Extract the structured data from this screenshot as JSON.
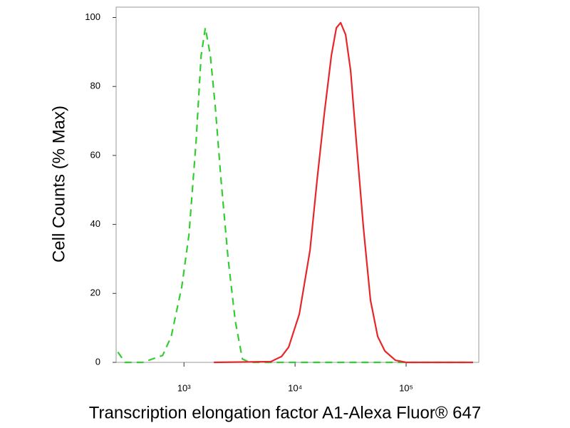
{
  "chart_data": {
    "type": "line",
    "x_label": "Transcription elongation factor A1-Alexa Fluor® 647",
    "y_label": "Cell Counts (% Max)",
    "xscale": "log",
    "xlim": [
      245,
      451000
    ],
    "ylim": [
      0,
      103
    ],
    "xticks": [
      {
        "value": 1000,
        "label": "10³"
      },
      {
        "value": 10000,
        "label": "10⁴"
      },
      {
        "value": 100000,
        "label": "10⁵"
      }
    ],
    "yticks": [
      0,
      20,
      40,
      60,
      80,
      100
    ],
    "series": [
      {
        "color": "#33cc33",
        "dashed": true,
        "x": [
          254,
          294,
          425,
          642,
          767,
          956,
          1109,
          1285,
          1426,
          1557,
          1726,
          1914,
          2155,
          2496,
          2894,
          3357,
          3890,
          10000,
          100000,
          400000
        ],
        "values": [
          3,
          0,
          0,
          2,
          7.5,
          22,
          37,
          64,
          89,
          97,
          89,
          74,
          53,
          30,
          12,
          1,
          0,
          0,
          0,
          0
        ]
      },
      {
        "color": "#e8262a",
        "dashed": false,
        "x": [
          1858,
          6053,
          7551,
          8750,
          10920,
          13640,
          15810,
          18330,
          21240,
          23550,
          25720,
          28510,
          31620,
          35600,
          41250,
          47780,
          55450,
          64270,
          80160,
          100000,
          400000
        ],
        "values": [
          0,
          0.2,
          1.7,
          4.4,
          14,
          32.5,
          53,
          72,
          89,
          97,
          98.5,
          95,
          84.6,
          64,
          39,
          18,
          7.5,
          3.3,
          0.6,
          0,
          0
        ]
      }
    ]
  }
}
